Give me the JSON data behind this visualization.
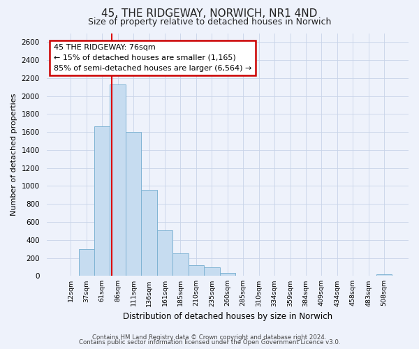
{
  "title": "45, THE RIDGEWAY, NORWICH, NR1 4ND",
  "subtitle": "Size of property relative to detached houses in Norwich",
  "xlabel": "Distribution of detached houses by size in Norwich",
  "ylabel": "Number of detached properties",
  "bin_labels": [
    "12sqm",
    "37sqm",
    "61sqm",
    "86sqm",
    "111sqm",
    "136sqm",
    "161sqm",
    "185sqm",
    "210sqm",
    "235sqm",
    "260sqm",
    "285sqm",
    "310sqm",
    "334sqm",
    "359sqm",
    "384sqm",
    "409sqm",
    "434sqm",
    "458sqm",
    "483sqm",
    "508sqm"
  ],
  "bar_values": [
    0,
    295,
    1665,
    2130,
    1600,
    960,
    505,
    250,
    120,
    95,
    30,
    0,
    0,
    0,
    0,
    0,
    0,
    0,
    0,
    0,
    20
  ],
  "bar_color": "#c6dcf0",
  "bar_edge_color": "#7fb3d3",
  "bar_alpha": 1.0,
  "annotation_title": "45 THE RIDGEWAY: 76sqm",
  "annotation_line1": "← 15% of detached houses are smaller (1,165)",
  "annotation_line2": "85% of semi-detached houses are larger (6,564) →",
  "annotation_box_color": "#ffffff",
  "annotation_box_edge": "#cc0000",
  "red_line_index": 2.6,
  "ylim": [
    0,
    2700
  ],
  "yticks": [
    0,
    200,
    400,
    600,
    800,
    1000,
    1200,
    1400,
    1600,
    1800,
    2000,
    2200,
    2400,
    2600
  ],
  "footer1": "Contains HM Land Registry data © Crown copyright and database right 2024.",
  "footer2": "Contains public sector information licensed under the Open Government Licence v3.0.",
  "bg_color": "#eef2fb",
  "grid_color": "#c8d4e8"
}
